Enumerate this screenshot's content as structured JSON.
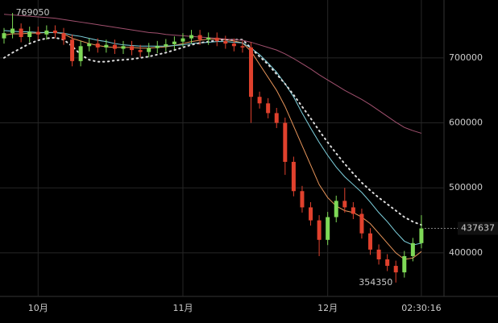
{
  "chart_data": {
    "type": "candlestick",
    "categories": [
      null,
      null,
      null,
      null,
      "10月",
      null,
      null,
      null,
      null,
      null,
      null,
      null,
      null,
      null,
      null,
      null,
      null,
      null,
      null,
      null,
      null,
      "11月",
      null,
      null,
      null,
      null,
      null,
      null,
      null,
      null,
      null,
      null,
      null,
      null,
      null,
      null,
      null,
      null,
      "12月",
      null,
      null,
      null,
      null,
      null,
      null,
      null,
      null,
      null,
      null,
      "02:30:16"
    ],
    "open": [
      730000,
      738000,
      745000,
      732000,
      740000,
      736000,
      742000,
      738000,
      728000,
      695000,
      718000,
      722000,
      716000,
      720000,
      714000,
      718000,
      712000,
      709000,
      715000,
      718000,
      721000,
      725000,
      730000,
      735000,
      728000,
      731000,
      726000,
      722000,
      718000,
      716000,
      640000,
      630000,
      615000,
      600000,
      540000,
      495000,
      470000,
      450000,
      420000,
      455000,
      480000,
      470000,
      460000,
      430000,
      405000,
      390000,
      380000,
      370000,
      395000,
      415000
    ],
    "high": [
      746000,
      769050,
      753000,
      748000,
      748000,
      750000,
      750000,
      746000,
      736000,
      726000,
      730000,
      730000,
      728000,
      728000,
      726000,
      726000,
      720000,
      723000,
      726000,
      729000,
      733000,
      738000,
      743000,
      743000,
      739000,
      739000,
      734000,
      730000,
      726000,
      724000,
      648000,
      638000,
      623000,
      608000,
      548000,
      503000,
      478000,
      458000,
      463000,
      488000,
      500000,
      478000,
      468000,
      438000,
      413000,
      398000,
      388000,
      403000,
      423000,
      458000
    ],
    "low": [
      722000,
      730000,
      724000,
      724000,
      728000,
      728000,
      730000,
      720000,
      687000,
      687000,
      710000,
      708000,
      708000,
      706000,
      706000,
      704000,
      701000,
      701000,
      707000,
      710000,
      713000,
      717000,
      722000,
      720000,
      720000,
      718000,
      714000,
      710000,
      708000,
      600000,
      622000,
      607000,
      592000,
      520000,
      487000,
      462000,
      442000,
      395000,
      412000,
      447000,
      462000,
      452000,
      422000,
      397000,
      382000,
      372000,
      354350,
      362000,
      387000,
      407000
    ],
    "close": [
      738000,
      745000,
      732000,
      740000,
      736000,
      742000,
      738000,
      728000,
      695000,
      718000,
      722000,
      716000,
      720000,
      714000,
      718000,
      712000,
      709000,
      715000,
      718000,
      721000,
      725000,
      730000,
      735000,
      728000,
      731000,
      726000,
      722000,
      718000,
      716000,
      640000,
      630000,
      615000,
      600000,
      540000,
      495000,
      470000,
      450000,
      420000,
      455000,
      480000,
      470000,
      460000,
      430000,
      405000,
      390000,
      380000,
      370000,
      395000,
      415000,
      437637
    ],
    "up_color": "#7ed957",
    "down_color": "#e0412d",
    "series": [
      {
        "color": "#e8955a",
        "style": "solid",
        "values": [
          735000,
          737000,
          737000,
          738000,
          738000,
          739000,
          739000,
          737000,
          730000,
          726000,
          722000,
          719000,
          717000,
          716000,
          716000,
          716000,
          715000,
          715000,
          716000,
          717000,
          719000,
          722000,
          725000,
          727000,
          729000,
          729000,
          728000,
          726000,
          723000,
          710000,
          690000,
          670000,
          650000,
          625000,
          595000,
          565000,
          535000,
          505000,
          485000,
          472000,
          465000,
          462000,
          455000,
          445000,
          430000,
          415000,
          400000,
          390000,
          392000,
          402000
        ]
      },
      {
        "color": "#7fd3e0",
        "style": "solid",
        "values": [
          742000,
          741000,
          740000,
          740000,
          739000,
          739000,
          739000,
          738000,
          735000,
          733000,
          730000,
          727000,
          725000,
          722000,
          720000,
          719000,
          718000,
          718000,
          718000,
          718000,
          719000,
          720000,
          722000,
          723000,
          724000,
          725000,
          725000,
          724000,
          723000,
          715000,
          705000,
          692000,
          678000,
          660000,
          640000,
          615000,
          592000,
          570000,
          550000,
          532000,
          517000,
          505000,
          493000,
          478000,
          462000,
          448000,
          432000,
          418000,
          412000,
          415000
        ]
      },
      {
        "color": "#dddddd",
        "style": "dotted",
        "values": [
          700000,
          708000,
          715000,
          722000,
          727000,
          730000,
          731000,
          728000,
          718000,
          705000,
          697000,
          694000,
          694000,
          696000,
          697000,
          698000,
          700000,
          702000,
          705000,
          708000,
          712000,
          716000,
          720000,
          723000,
          725000,
          727000,
          728000,
          728000,
          728000,
          715000,
          702000,
          690000,
          675000,
          660000,
          643000,
          625000,
          607000,
          588000,
          570000,
          553000,
          537000,
          522000,
          508000,
          496000,
          485000,
          475000,
          465000,
          455000,
          448000,
          443000
        ]
      },
      {
        "color": "#a0506e",
        "style": "solid",
        "values": [
          767000,
          766000,
          765000,
          764000,
          763000,
          762000,
          761000,
          759000,
          757000,
          755000,
          753000,
          751000,
          749000,
          747000,
          745000,
          743000,
          741000,
          739000,
          738000,
          736000,
          735000,
          734000,
          733000,
          732000,
          731000,
          730000,
          729000,
          728000,
          727000,
          724000,
          720000,
          716000,
          712000,
          706000,
          699000,
          691000,
          683000,
          674000,
          666000,
          658000,
          650000,
          643000,
          636000,
          628000,
          619000,
          610000,
          601000,
          593000,
          588000,
          584000
        ]
      }
    ],
    "ylim": [
      333000,
      789000
    ],
    "yticks": [
      400000,
      500000,
      600000,
      700000
    ],
    "grid": true
  }
}
